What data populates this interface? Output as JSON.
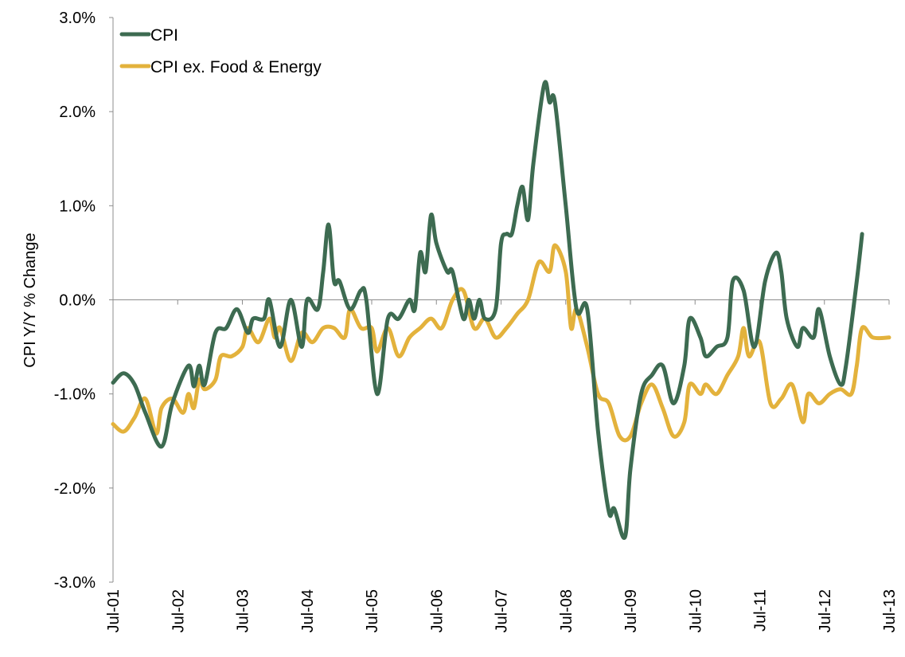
{
  "chart_data": {
    "type": "line",
    "title": "",
    "xlabel": "",
    "ylabel": "CPI Y/Y % Change",
    "ylim": [
      -3.0,
      3.0
    ],
    "yticks": [
      -3.0,
      -2.0,
      -1.0,
      0.0,
      1.0,
      2.0,
      3.0
    ],
    "ytick_labels": [
      "-3.0%",
      "-2.0%",
      "-1.0%",
      "0.0%",
      "1.0%",
      "2.0%",
      "3.0%"
    ],
    "xlim": [
      "Jul-01",
      "Jul-13"
    ],
    "xtick_labels": [
      "Jul-01",
      "Jul-02",
      "Jul-03",
      "Jul-04",
      "Jul-05",
      "Jul-06",
      "Jul-07",
      "Jul-08",
      "Jul-09",
      "Jul-10",
      "Jul-11",
      "Jul-12",
      "Jul-13"
    ],
    "grid": false,
    "legend_position": "top-left",
    "series": [
      {
        "name": "CPI",
        "color": "#3d6b51",
        "points": [
          [
            "Jul-01",
            -0.88
          ],
          [
            "Sep-01",
            -0.78
          ],
          [
            "Nov-01",
            -0.9
          ],
          [
            "Jan-02",
            -1.2
          ],
          [
            "Apr-02",
            -1.56
          ],
          [
            "Jun-02",
            -1.1
          ],
          [
            "Sep-02",
            -0.7
          ],
          [
            "Oct-02",
            -0.92
          ],
          [
            "Nov-02",
            -0.7
          ],
          [
            "Dec-02",
            -0.9
          ],
          [
            "Feb-03",
            -0.35
          ],
          [
            "Apr-03",
            -0.3
          ],
          [
            "Jun-03",
            -0.1
          ],
          [
            "Aug-03",
            -0.35
          ],
          [
            "Sep-03",
            -0.2
          ],
          [
            "Nov-03",
            -0.2
          ],
          [
            "Dec-03",
            0.0
          ],
          [
            "Feb-04",
            -0.5
          ],
          [
            "Apr-04",
            0.0
          ],
          [
            "Jun-04",
            -0.5
          ],
          [
            "Jul-04",
            0.0
          ],
          [
            "Sep-04",
            -0.1
          ],
          [
            "Oct-04",
            0.3
          ],
          [
            "Nov-04",
            0.8
          ],
          [
            "Dec-04",
            0.2
          ],
          [
            "Jan-05",
            0.2
          ],
          [
            "Mar-05",
            -0.1
          ],
          [
            "May-05",
            0.1
          ],
          [
            "Jun-05",
            0.0
          ],
          [
            "Aug-05",
            -1.0
          ],
          [
            "Oct-05",
            -0.2
          ],
          [
            "Dec-05",
            -0.2
          ],
          [
            "Feb-06",
            0.0
          ],
          [
            "Mar-06",
            -0.1
          ],
          [
            "Apr-06",
            0.5
          ],
          [
            "May-06",
            0.3
          ],
          [
            "Jun-06",
            0.9
          ],
          [
            "Jul-06",
            0.6
          ],
          [
            "Sep-06",
            0.3
          ],
          [
            "Oct-06",
            0.3
          ],
          [
            "Dec-06",
            -0.2
          ],
          [
            "Jan-07",
            0.0
          ],
          [
            "Feb-07",
            -0.2
          ],
          [
            "Mar-07",
            0.0
          ],
          [
            "Apr-07",
            -0.2
          ],
          [
            "Jun-07",
            -0.1
          ],
          [
            "Jul-07",
            0.6
          ],
          [
            "Aug-07",
            0.7
          ],
          [
            "Sep-07",
            0.7
          ],
          [
            "Oct-07",
            1.0
          ],
          [
            "Nov-07",
            1.2
          ],
          [
            "Dec-07",
            0.85
          ],
          [
            "Jan-08",
            1.45
          ],
          [
            "Mar-08",
            2.29
          ],
          [
            "Apr-08",
            2.1
          ],
          [
            "May-08",
            2.1
          ],
          [
            "Jul-08",
            1.0
          ],
          [
            "Sep-08",
            -0.1
          ],
          [
            "Nov-08",
            -0.1
          ],
          [
            "Jan-09",
            -1.4
          ],
          [
            "Mar-09",
            -2.25
          ],
          [
            "Apr-09",
            -2.22
          ],
          [
            "Jun-09",
            -2.52
          ],
          [
            "Jul-09",
            -1.8
          ],
          [
            "Sep-09",
            -1.0
          ],
          [
            "Nov-09",
            -0.8
          ],
          [
            "Jan-10",
            -0.7
          ],
          [
            "Mar-10",
            -1.1
          ],
          [
            "May-10",
            -0.7
          ],
          [
            "Jun-10",
            -0.2
          ],
          [
            "Aug-10",
            -0.4
          ],
          [
            "Sep-10",
            -0.6
          ],
          [
            "Nov-10",
            -0.5
          ],
          [
            "Jan-11",
            -0.4
          ],
          [
            "Feb-11",
            0.2
          ],
          [
            "Apr-11",
            0.1
          ],
          [
            "Jun-11",
            -0.5
          ],
          [
            "Aug-11",
            0.2
          ],
          [
            "Oct-11",
            0.5
          ],
          [
            "Nov-11",
            0.3
          ],
          [
            "Dec-11",
            -0.2
          ],
          [
            "Feb-12",
            -0.5
          ],
          [
            "Mar-12",
            -0.3
          ],
          [
            "May-12",
            -0.4
          ],
          [
            "Jun-12",
            -0.1
          ],
          [
            "Aug-12",
            -0.6
          ],
          [
            "Oct-12",
            -0.9
          ],
          [
            "Nov-12",
            -0.7
          ],
          [
            "Jan-13",
            0.2
          ],
          [
            "Feb-13",
            0.7
          ]
        ]
      },
      {
        "name": "CPI ex. Food & Energy",
        "color": "#e3b23c",
        "points": [
          [
            "Jul-01",
            -1.32
          ],
          [
            "Sep-01",
            -1.4
          ],
          [
            "Nov-01",
            -1.25
          ],
          [
            "Jan-02",
            -1.05
          ],
          [
            "Mar-02",
            -1.42
          ],
          [
            "Apr-02",
            -1.15
          ],
          [
            "Jun-02",
            -1.05
          ],
          [
            "Aug-02",
            -1.2
          ],
          [
            "Sep-02",
            -1.0
          ],
          [
            "Oct-02",
            -1.15
          ],
          [
            "Nov-02",
            -0.85
          ],
          [
            "Dec-02",
            -0.95
          ],
          [
            "Feb-03",
            -0.85
          ],
          [
            "Mar-03",
            -0.6
          ],
          [
            "May-03",
            -0.6
          ],
          [
            "Jul-03",
            -0.5
          ],
          [
            "Aug-03",
            -0.3
          ],
          [
            "Oct-03",
            -0.45
          ],
          [
            "Dec-03",
            -0.2
          ],
          [
            "Jan-04",
            -0.4
          ],
          [
            "Feb-04",
            -0.3
          ],
          [
            "Apr-04",
            -0.65
          ],
          [
            "Jun-04",
            -0.35
          ],
          [
            "Aug-04",
            -0.45
          ],
          [
            "Oct-04",
            -0.3
          ],
          [
            "Dec-04",
            -0.3
          ],
          [
            "Feb-05",
            -0.4
          ],
          [
            "Mar-05",
            -0.1
          ],
          [
            "May-05",
            -0.3
          ],
          [
            "Jul-05",
            -0.3
          ],
          [
            "Aug-05",
            -0.55
          ],
          [
            "Oct-05",
            -0.3
          ],
          [
            "Dec-05",
            -0.6
          ],
          [
            "Feb-06",
            -0.4
          ],
          [
            "Apr-06",
            -0.3
          ],
          [
            "Jun-06",
            -0.2
          ],
          [
            "Aug-06",
            -0.3
          ],
          [
            "Oct-06",
            0.0
          ],
          [
            "Dec-06",
            0.1
          ],
          [
            "Feb-07",
            -0.3
          ],
          [
            "Apr-07",
            -0.2
          ],
          [
            "Jun-07",
            -0.4
          ],
          [
            "Aug-07",
            -0.3
          ],
          [
            "Oct-07",
            -0.15
          ],
          [
            "Dec-07",
            0.0
          ],
          [
            "Feb-08",
            0.4
          ],
          [
            "Apr-08",
            0.3
          ],
          [
            "May-08",
            0.58
          ],
          [
            "Jul-08",
            0.3
          ],
          [
            "Aug-08",
            -0.3
          ],
          [
            "Sep-08",
            -0.1
          ],
          [
            "Nov-08",
            -0.5
          ],
          [
            "Jan-09",
            -1.0
          ],
          [
            "Mar-09",
            -1.1
          ],
          [
            "May-09",
            -1.45
          ],
          [
            "Jul-09",
            -1.45
          ],
          [
            "Sep-09",
            -1.1
          ],
          [
            "Nov-09",
            -0.9
          ],
          [
            "Jan-10",
            -1.15
          ],
          [
            "Mar-10",
            -1.45
          ],
          [
            "May-10",
            -1.3
          ],
          [
            "Jun-10",
            -0.9
          ],
          [
            "Aug-10",
            -1.0
          ],
          [
            "Sep-10",
            -0.9
          ],
          [
            "Nov-10",
            -1.0
          ],
          [
            "Jan-11",
            -0.8
          ],
          [
            "Mar-11",
            -0.6
          ],
          [
            "Apr-11",
            -0.3
          ],
          [
            "May-11",
            -0.6
          ],
          [
            "Jul-11",
            -0.45
          ],
          [
            "Sep-11",
            -1.1
          ],
          [
            "Nov-11",
            -1.05
          ],
          [
            "Jan-12",
            -0.9
          ],
          [
            "Mar-12",
            -1.3
          ],
          [
            "Apr-12",
            -1.0
          ],
          [
            "Jun-12",
            -1.1
          ],
          [
            "Aug-12",
            -1.0
          ],
          [
            "Oct-12",
            -0.95
          ],
          [
            "Dec-12",
            -1.0
          ],
          [
            "Jan-13",
            -0.7
          ],
          [
            "Feb-13",
            -0.3
          ],
          [
            "Apr-13",
            -0.4
          ],
          [
            "Jul-13",
            -0.4
          ]
        ]
      }
    ]
  }
}
